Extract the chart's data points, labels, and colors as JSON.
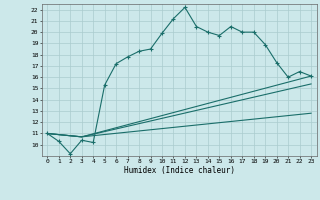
{
  "title": "",
  "xlabel": "Humidex (Indice chaleur)",
  "bg_color": "#cce8ea",
  "grid_color": "#aaccce",
  "line_color": "#1a6e6a",
  "xlim": [
    -0.5,
    23.5
  ],
  "ylim": [
    9,
    22.5
  ],
  "yticks": [
    10,
    11,
    12,
    13,
    14,
    15,
    16,
    17,
    18,
    19,
    20,
    21,
    22
  ],
  "xticks": [
    0,
    1,
    2,
    3,
    4,
    5,
    6,
    7,
    8,
    9,
    10,
    11,
    12,
    13,
    14,
    15,
    16,
    17,
    18,
    19,
    20,
    21,
    22,
    23
  ],
  "line1_x": [
    0,
    1,
    2,
    3,
    4,
    5,
    6,
    7,
    8,
    9,
    10,
    11,
    12,
    13,
    14,
    15,
    16,
    17,
    18,
    19,
    20,
    21,
    22,
    23
  ],
  "line1_y": [
    11.0,
    10.3,
    9.2,
    10.4,
    10.2,
    15.3,
    17.2,
    17.8,
    18.3,
    18.5,
    19.9,
    21.2,
    22.2,
    20.5,
    20.0,
    19.7,
    20.5,
    20.0,
    20.0,
    18.9,
    17.3,
    16.0,
    16.5,
    16.1
  ],
  "line2_x": [
    0,
    3,
    23
  ],
  "line2_y": [
    11.0,
    10.7,
    16.1
  ],
  "line3_x": [
    0,
    3,
    23
  ],
  "line3_y": [
    11.0,
    10.7,
    15.4
  ],
  "line4_x": [
    0,
    3,
    23
  ],
  "line4_y": [
    11.0,
    10.7,
    12.8
  ]
}
